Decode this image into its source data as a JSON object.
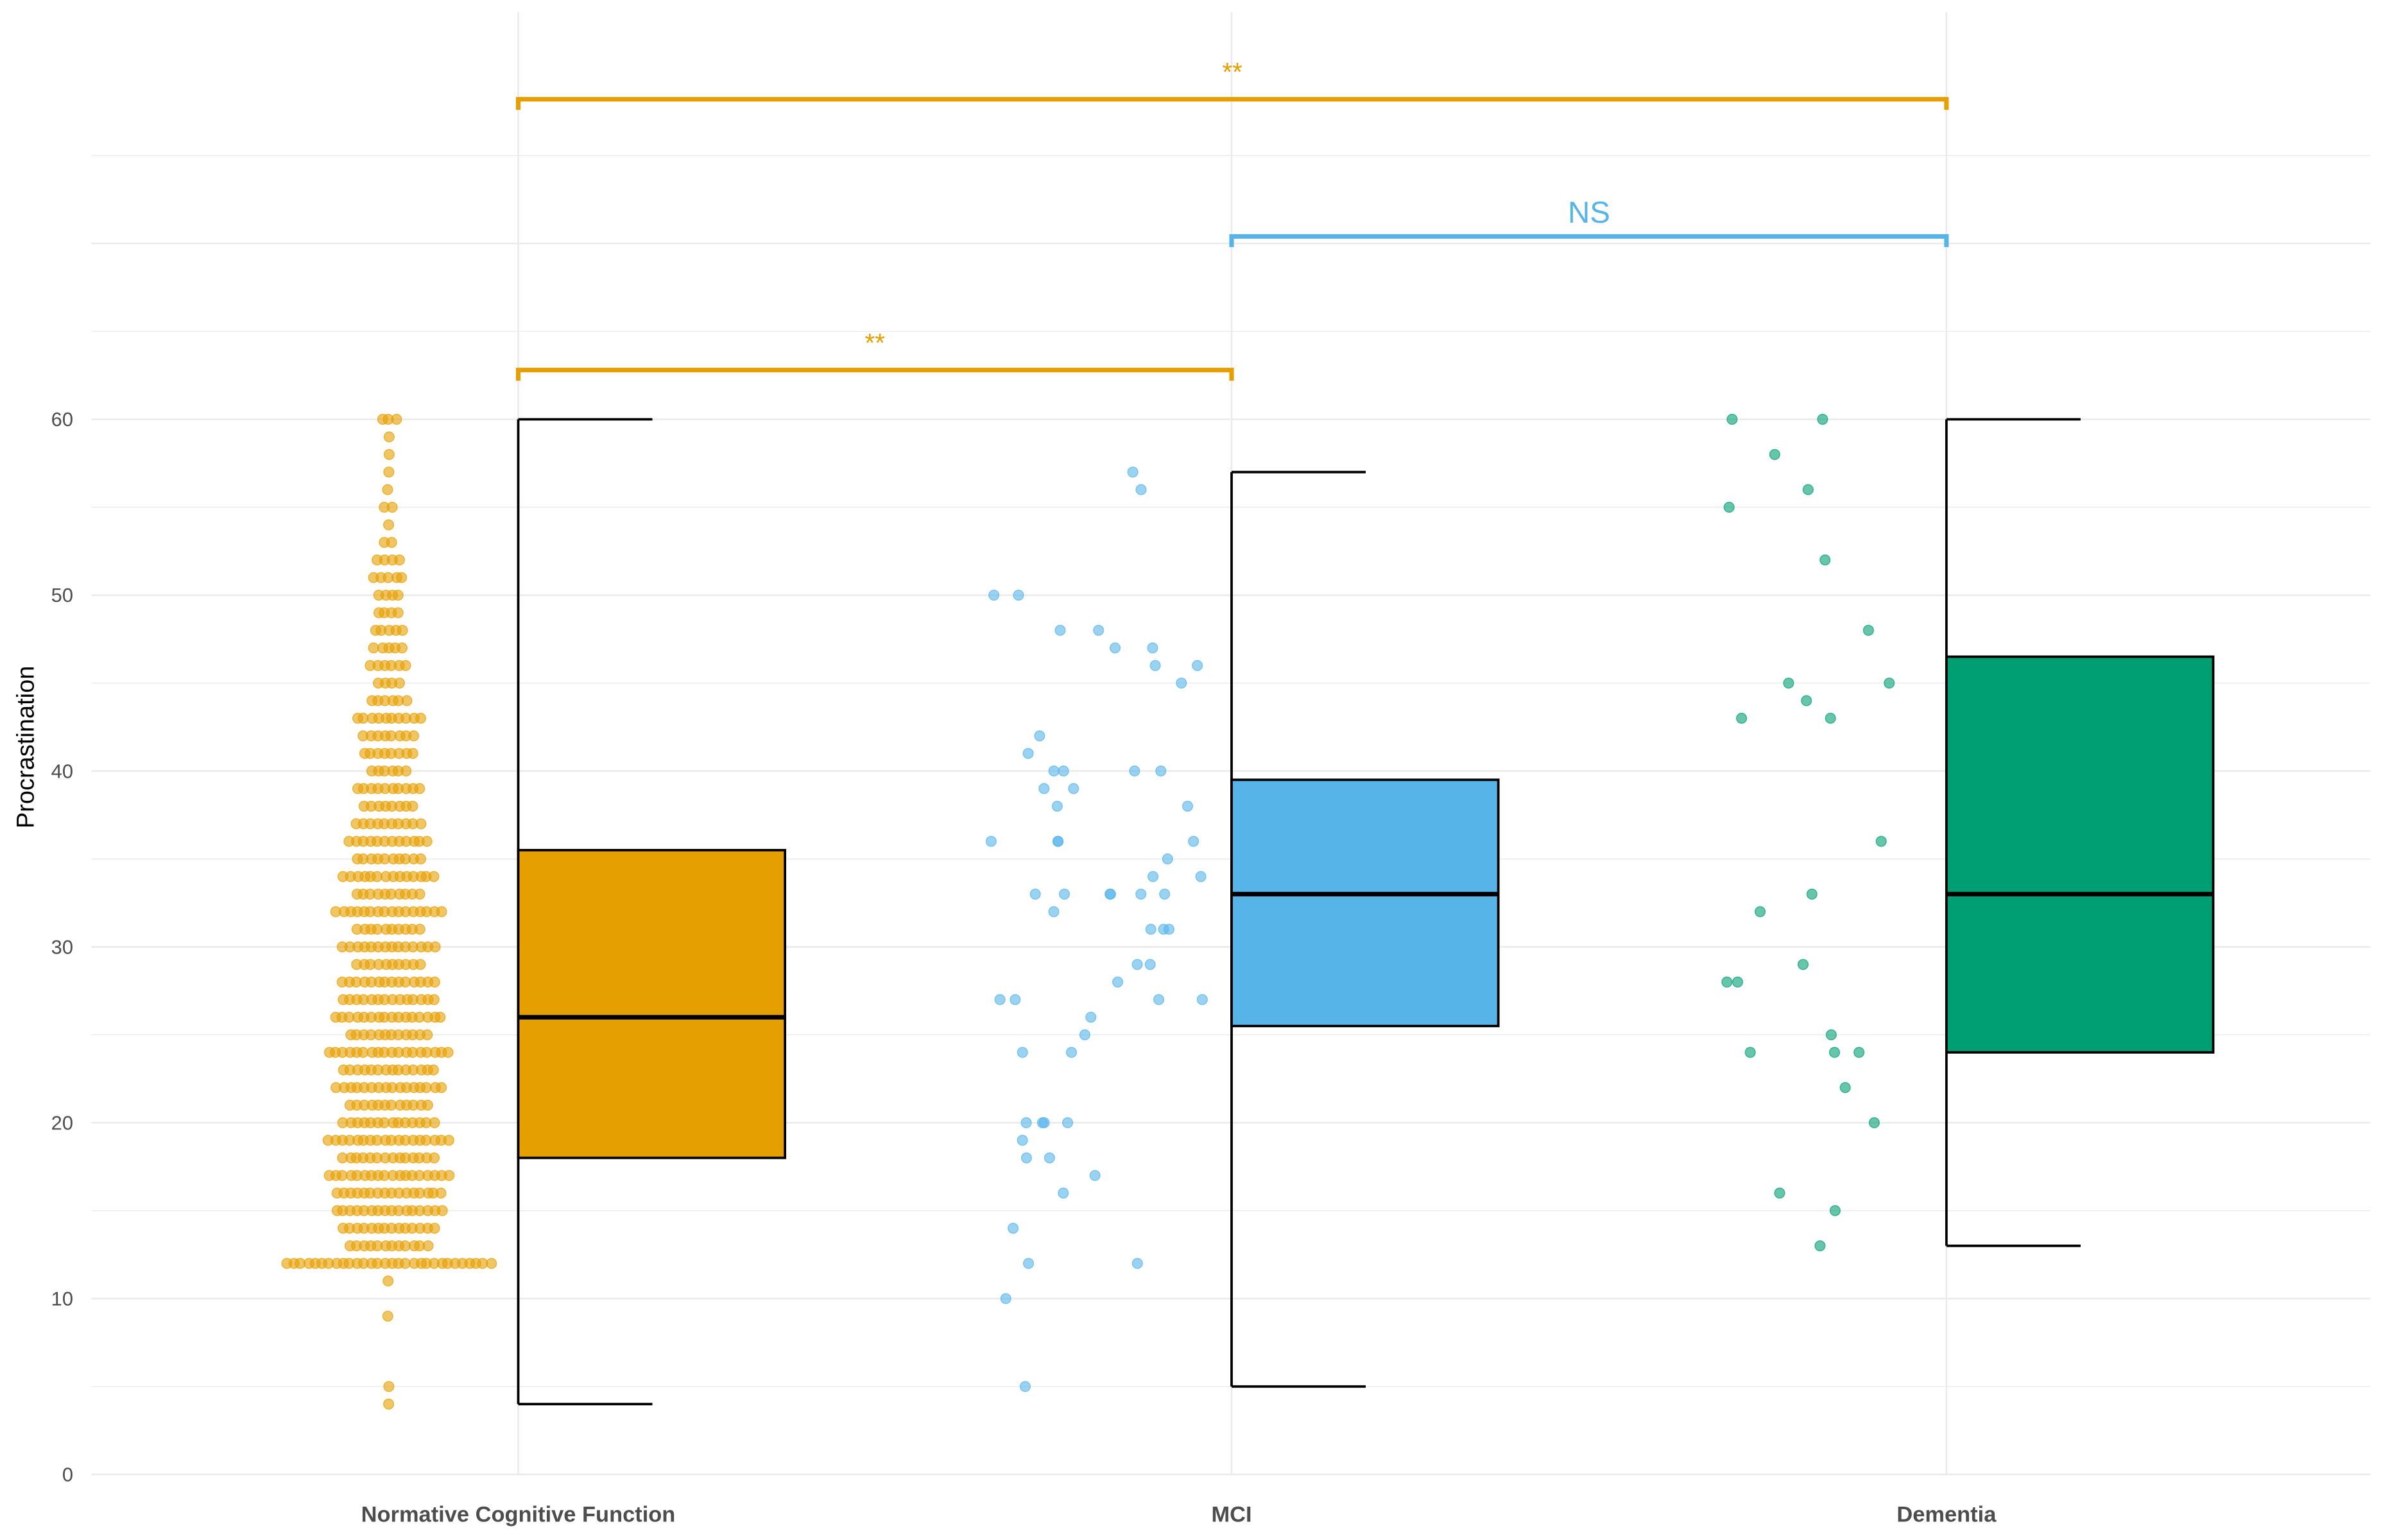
{
  "chart_data": {
    "type": "box",
    "title": "",
    "xlabel": "",
    "ylabel": "Procrastination",
    "ylim": [
      0,
      83
    ],
    "yticks": [
      0,
      10,
      20,
      30,
      40,
      50,
      60
    ],
    "grid": true,
    "categories": [
      "Normative Cognitive Function",
      "MCI",
      "Dementia"
    ],
    "colors": [
      "#E69F00",
      "#56B4E9",
      "#009E73"
    ],
    "boxes": [
      {
        "group": "Normative Cognitive Function",
        "whisker_low": 4,
        "q1": 18,
        "median": 26,
        "q3": 35.5,
        "whisker_high": 60
      },
      {
        "group": "MCI",
        "whisker_low": 5,
        "q1": 25.5,
        "median": 33,
        "q3": 39.5,
        "whisker_high": 57
      },
      {
        "group": "Dementia",
        "whisker_low": 13,
        "q1": 24,
        "median": 33,
        "q3": 46.5,
        "whisker_high": 60
      }
    ],
    "points": {
      "Normative Cognitive Function_counts": {
        "4": 1,
        "5": 1,
        "9": 1,
        "11": 1,
        "12": 30,
        "13": 12,
        "14": 14,
        "15": 16,
        "16": 16,
        "17": 18,
        "18": 14,
        "19": 18,
        "20": 14,
        "21": 12,
        "22": 16,
        "23": 14,
        "24": 18,
        "25": 12,
        "26": 16,
        "27": 14,
        "28": 14,
        "29": 10,
        "30": 14,
        "31": 10,
        "32": 16,
        "33": 10,
        "34": 14,
        "35": 10,
        "36": 12,
        "37": 10,
        "38": 8,
        "39": 10,
        "40": 6,
        "41": 8,
        "42": 8,
        "43": 10,
        "44": 6,
        "45": 4,
        "46": 6,
        "47": 5,
        "48": 5,
        "49": 4,
        "50": 4,
        "51": 5,
        "52": 4,
        "53": 2,
        "54": 1,
        "55": 2,
        "56": 1,
        "57": 1,
        "58": 1,
        "59": 1,
        "60": 3
      },
      "MCI": [
        57,
        56,
        50,
        50,
        48,
        48,
        47,
        47,
        46,
        46,
        45,
        42,
        41,
        40,
        40,
        40,
        40,
        39,
        39,
        38,
        38,
        36,
        36,
        36,
        36,
        35,
        34,
        34,
        33,
        33,
        33,
        33,
        33,
        33,
        32,
        31,
        31,
        31,
        29,
        29,
        28,
        27,
        27,
        27,
        27,
        26,
        25,
        24,
        24,
        20,
        20,
        20,
        20,
        19,
        18,
        18,
        17,
        16,
        14,
        12,
        12,
        10,
        5
      ],
      "Dementia": [
        60,
        60,
        58,
        56,
        55,
        52,
        48,
        45,
        45,
        44,
        43,
        43,
        36,
        33,
        32,
        29,
        28,
        28,
        25,
        24,
        24,
        24,
        22,
        20,
        16,
        15,
        13
      ]
    },
    "comparisons": [
      {
        "from": "Normative Cognitive Function",
        "to": "Dementia",
        "label": "**",
        "y": 78.2,
        "color": "#E69F00"
      },
      {
        "from": "MCI",
        "to": "Dementia",
        "label": "NS",
        "y": 70.4,
        "color": "#56B4E9"
      },
      {
        "from": "Normative Cognitive Function",
        "to": "MCI",
        "label": "**",
        "y": 62.8,
        "color": "#E69F00"
      }
    ]
  }
}
